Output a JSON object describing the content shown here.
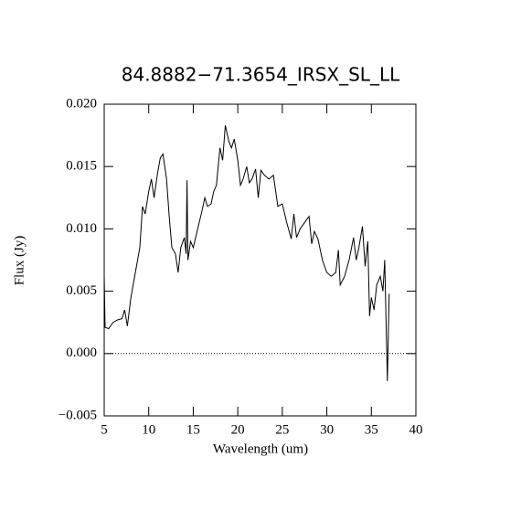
{
  "chart_data": {
    "type": "line",
    "title": "84.8882−71.3654_IRSX_SL_LL",
    "x_label": "Wavelength (um)",
    "y_label": "Flux (Jy)",
    "color": "#000000",
    "zero_line": true,
    "xlim": [
      5,
      40
    ],
    "ylim": [
      -0.005,
      0.02
    ],
    "xticks": [
      5,
      10,
      15,
      20,
      25,
      30,
      35,
      40
    ],
    "yticks": [
      {
        "value": 0.02,
        "label": "0.020"
      },
      {
        "value": 0.015,
        "label": "0.015"
      },
      {
        "value": 0.01,
        "label": "0.010"
      },
      {
        "value": 0.005,
        "label": "0.005"
      },
      {
        "value": 0,
        "label": "0.000"
      },
      {
        "value": -0.005,
        "label": "−0.005"
      }
    ],
    "x": [
      5.0,
      5.1,
      5.5,
      6.0,
      6.5,
      7.0,
      7.3,
      7.6,
      8.0,
      8.5,
      9.0,
      9.3,
      9.6,
      10.0,
      10.3,
      10.6,
      11.0,
      11.3,
      11.6,
      12.0,
      12.3,
      12.6,
      13.0,
      13.3,
      13.6,
      14.0,
      14.2,
      14.3,
      14.4,
      14.7,
      15.0,
      15.5,
      16.0,
      16.3,
      16.6,
      17.0,
      17.3,
      17.6,
      18.0,
      18.3,
      18.6,
      19.0,
      19.3,
      19.6,
      20.0,
      20.3,
      20.6,
      21.0,
      21.3,
      21.6,
      22.0,
      22.3,
      22.6,
      23.0,
      23.5,
      24.0,
      24.5,
      25.0,
      25.5,
      26.0,
      26.3,
      26.6,
      27.0,
      27.5,
      28.0,
      28.3,
      28.6,
      29.0,
      29.5,
      30.0,
      30.5,
      31.0,
      31.3,
      31.5,
      32.0,
      32.5,
      33.0,
      33.3,
      33.6,
      34.0,
      34.3,
      34.6,
      34.8,
      35.0,
      35.3,
      35.6,
      36.0,
      36.3,
      36.5,
      36.8,
      37.0
    ],
    "values": [
      0.0062,
      0.0021,
      0.002,
      0.0025,
      0.0027,
      0.0028,
      0.0035,
      0.0022,
      0.0045,
      0.0065,
      0.0085,
      0.0118,
      0.0112,
      0.013,
      0.014,
      0.0125,
      0.0145,
      0.0157,
      0.016,
      0.014,
      0.011,
      0.0085,
      0.008,
      0.0065,
      0.0085,
      0.0093,
      0.008,
      0.0139,
      0.0075,
      0.009,
      0.0085,
      0.01,
      0.0115,
      0.0125,
      0.0118,
      0.012,
      0.013,
      0.0135,
      0.0165,
      0.0155,
      0.0183,
      0.017,
      0.0165,
      0.0172,
      0.0155,
      0.0135,
      0.014,
      0.015,
      0.0137,
      0.014,
      0.0148,
      0.0125,
      0.0147,
      0.0143,
      0.014,
      0.0143,
      0.0118,
      0.012,
      0.0105,
      0.0092,
      0.0112,
      0.0093,
      0.01,
      0.0105,
      0.011,
      0.0088,
      0.0098,
      0.0092,
      0.0075,
      0.0065,
      0.0062,
      0.0065,
      0.0083,
      0.0055,
      0.0062,
      0.0075,
      0.0093,
      0.0075,
      0.0085,
      0.0102,
      0.007,
      0.009,
      0.003,
      0.0045,
      0.0035,
      0.0055,
      0.0062,
      0.005,
      0.0075,
      -0.0022,
      0.0048
    ]
  }
}
